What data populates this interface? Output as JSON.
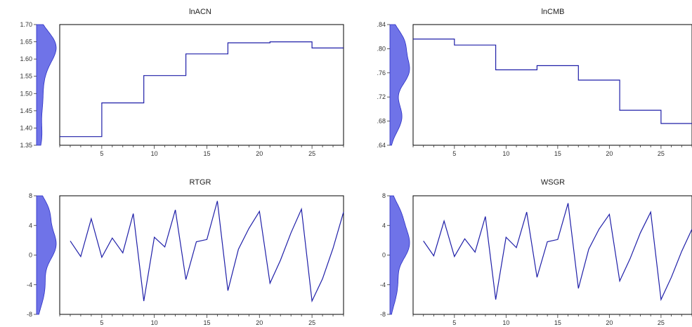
{
  "chart_data": [
    {
      "type": "line",
      "title": "lnACN",
      "xlim": [
        1,
        28
      ],
      "ylim": [
        1.35,
        1.7
      ],
      "xticks": [
        5,
        10,
        15,
        20,
        25
      ],
      "yticks": [
        1.35,
        1.4,
        1.45,
        1.5,
        1.55,
        1.6,
        1.65,
        1.7
      ],
      "ytick_labels": [
        "1.35",
        "1.40",
        "1.45",
        "1.50",
        "1.55",
        "1.60",
        "1.65",
        "1.70"
      ],
      "x": [
        1,
        2,
        3,
        4,
        5,
        6,
        7,
        8,
        9,
        10,
        11,
        12,
        13,
        14,
        15,
        16,
        17,
        18,
        19,
        20,
        21,
        22,
        23,
        24,
        25,
        26,
        27,
        28
      ],
      "values": [
        1.375,
        1.375,
        1.375,
        1.375,
        1.473,
        1.473,
        1.473,
        1.473,
        1.552,
        1.552,
        1.552,
        1.552,
        1.615,
        1.615,
        1.615,
        1.615,
        1.647,
        1.647,
        1.647,
        1.647,
        1.65,
        1.65,
        1.65,
        1.65,
        1.632,
        1.632,
        1.632,
        1.632
      ],
      "step": true,
      "distribution": "density",
      "grid": false,
      "legend": "none",
      "color": "#1f1fa8",
      "density_color": "#6f73e8"
    },
    {
      "type": "line",
      "title": "lnCMB",
      "xlim": [
        1,
        28
      ],
      "ylim": [
        0.64,
        0.84
      ],
      "xticks": [
        5,
        10,
        15,
        20,
        25
      ],
      "yticks": [
        0.64,
        0.68,
        0.72,
        0.76,
        0.8,
        0.84
      ],
      "ytick_labels": [
        ".64",
        ".68",
        ".72",
        ".76",
        ".80",
        ".84"
      ],
      "x": [
        1,
        2,
        3,
        4,
        5,
        6,
        7,
        8,
        9,
        10,
        11,
        12,
        13,
        14,
        15,
        16,
        17,
        18,
        19,
        20,
        21,
        22,
        23,
        24,
        25,
        26,
        27,
        28
      ],
      "values": [
        0.816,
        0.816,
        0.816,
        0.816,
        0.806,
        0.806,
        0.806,
        0.806,
        0.765,
        0.765,
        0.765,
        0.765,
        0.772,
        0.772,
        0.772,
        0.772,
        0.748,
        0.748,
        0.748,
        0.748,
        0.698,
        0.698,
        0.698,
        0.698,
        0.676,
        0.676,
        0.676,
        0.676
      ],
      "step": true,
      "distribution": "density",
      "grid": false,
      "legend": "none",
      "color": "#1f1fa8",
      "density_color": "#6f73e8"
    },
    {
      "type": "line",
      "title": "RTGR",
      "xlim": [
        1,
        28
      ],
      "ylim": [
        -8,
        8
      ],
      "xticks": [
        5,
        10,
        15,
        20,
        25
      ],
      "yticks": [
        -8,
        -4,
        0,
        4,
        8
      ],
      "ytick_labels": [
        "-8",
        "-4",
        "0",
        "4",
        "8"
      ],
      "x": [
        2,
        3,
        4,
        5,
        6,
        7,
        8,
        9,
        10,
        11,
        12,
        13,
        14,
        15,
        16,
        17,
        18,
        19,
        20,
        21,
        22,
        23,
        24,
        25,
        26,
        27,
        28
      ],
      "values": [
        1.9,
        -0.2,
        4.9,
        -0.3,
        2.3,
        0.3,
        5.6,
        -6.2,
        2.4,
        1.1,
        6.1,
        -3.3,
        1.8,
        2.1,
        7.3,
        -4.8,
        0.8,
        3.6,
        5.9,
        -3.8,
        -0.7,
        3.0,
        6.2,
        -6.2,
        -3.2,
        0.9,
        5.8
      ],
      "step": false,
      "distribution": "density",
      "grid": false,
      "legend": "none",
      "color": "#1f1fa8",
      "density_color": "#6f73e8"
    },
    {
      "type": "line",
      "title": "WSGR",
      "xlim": [
        1,
        28
      ],
      "ylim": [
        -8,
        8
      ],
      "xticks": [
        5,
        10,
        15,
        20,
        25
      ],
      "yticks": [
        -8,
        -4,
        0,
        4,
        8
      ],
      "ytick_labels": [
        "-8",
        "-4",
        "0",
        "4",
        "8"
      ],
      "x": [
        2,
        3,
        4,
        5,
        6,
        7,
        8,
        9,
        10,
        11,
        12,
        13,
        14,
        15,
        16,
        17,
        18,
        19,
        20,
        21,
        22,
        23,
        24,
        25,
        26,
        27,
        28
      ],
      "values": [
        1.9,
        -0.1,
        4.6,
        -0.2,
        2.2,
        0.4,
        5.2,
        -6.0,
        2.4,
        1.0,
        5.8,
        -3.0,
        1.8,
        2.1,
        7.0,
        -4.5,
        0.8,
        3.5,
        5.5,
        -3.5,
        -0.5,
        3.0,
        5.8,
        -6.0,
        -3.0,
        0.5,
        3.5
      ],
      "step": false,
      "distribution": "density",
      "grid": false,
      "legend": "none",
      "color": "#1f1fa8",
      "density_color": "#6f73e8"
    }
  ]
}
